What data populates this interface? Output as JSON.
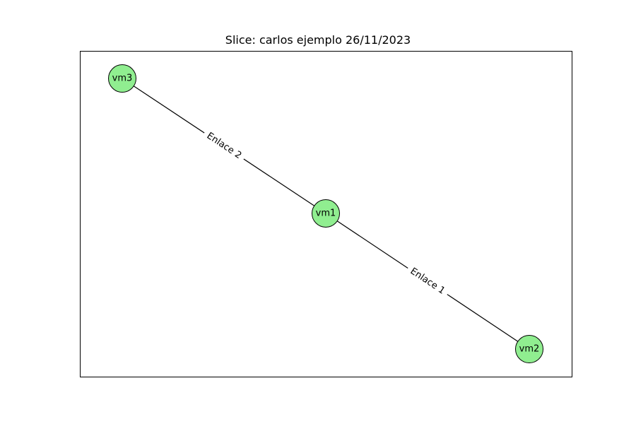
{
  "figure": {
    "title": "Slice: carlos ejemplo 26/11/2023"
  },
  "graph": {
    "node_color": "#90ee90",
    "edge_color": "#000000",
    "nodes": [
      {
        "id": "vm1",
        "label": "vm1"
      },
      {
        "id": "vm2",
        "label": "vm2"
      },
      {
        "id": "vm3",
        "label": "vm3"
      }
    ],
    "edges": [
      {
        "source": "vm1",
        "target": "vm2",
        "label": "Enlace 1"
      },
      {
        "source": "vm1",
        "target": "vm3",
        "label": "Enlace 2"
      }
    ]
  }
}
